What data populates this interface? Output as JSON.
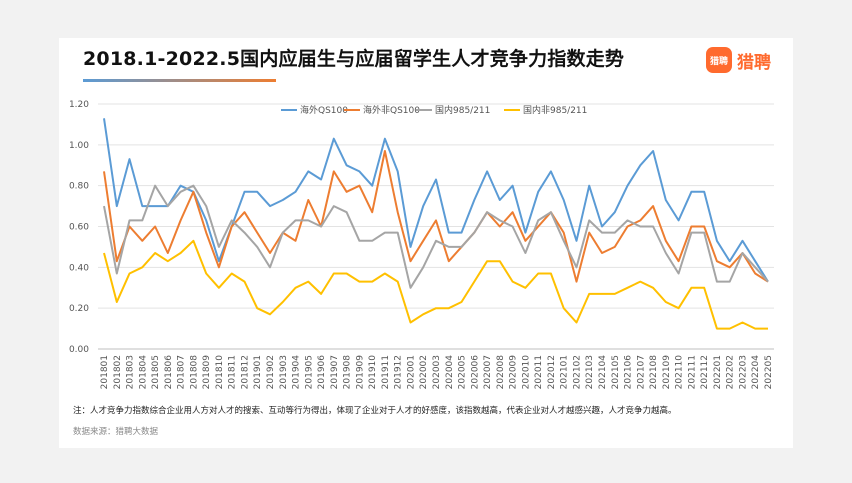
{
  "header": {
    "title": "2018.1-2022.5国内应届生与应届留学生人才竞争力指数走势",
    "brand_icon_text": "猎聘",
    "brand_name": "猎聘"
  },
  "note": "注：人才竞争力指数综合企业用人方对人才的搜索、互动等行为得出，体现了企业对于人才的好感度，该指数越高，代表企业对人才越感兴趣，人才竞争力越高。",
  "source": "数据来源：猎聘大数据",
  "chart_data": {
    "type": "line",
    "title": "2018.1-2022.5国内应届生与应届留学生人才竞争力指数走势",
    "xlabel": "",
    "ylabel": "",
    "ylim": [
      0,
      1.2
    ],
    "yticks": [
      "0.00",
      "0.20",
      "0.40",
      "0.60",
      "0.80",
      "1.00",
      "1.20"
    ],
    "grid": true,
    "legend_position": "top",
    "categories": [
      "201801",
      "201802",
      "201803",
      "201804",
      "201805",
      "201806",
      "201807",
      "201808",
      "201809",
      "201810",
      "201811",
      "201812",
      "201901",
      "201902",
      "201903",
      "201904",
      "201905",
      "201906",
      "201907",
      "201908",
      "201909",
      "201910",
      "201911",
      "201912",
      "202001",
      "202002",
      "202003",
      "202004",
      "202005",
      "202006",
      "202007",
      "202008",
      "202009",
      "202010",
      "202011",
      "202012",
      "202101",
      "202102",
      "202103",
      "202104",
      "202105",
      "202106",
      "202107",
      "202108",
      "202109",
      "202110",
      "202111",
      "202112",
      "202201",
      "202202",
      "202203",
      "202204",
      "202205"
    ],
    "series": [
      {
        "name": "海外QS100",
        "color": "#5b9bd5",
        "values": [
          1.13,
          0.7,
          0.93,
          0.7,
          0.7,
          0.7,
          0.8,
          0.77,
          0.63,
          0.43,
          0.6,
          0.77,
          0.77,
          0.7,
          0.73,
          0.77,
          0.87,
          0.83,
          1.03,
          0.9,
          0.87,
          0.8,
          1.03,
          0.87,
          0.5,
          0.7,
          0.83,
          0.57,
          0.57,
          0.73,
          0.87,
          0.73,
          0.8,
          0.57,
          0.77,
          0.87,
          0.73,
          0.53,
          0.8,
          0.6,
          0.67,
          0.8,
          0.9,
          0.97,
          0.73,
          0.63,
          0.77,
          0.77,
          0.53,
          0.43,
          0.53,
          0.43,
          0.33
        ]
      },
      {
        "name": "海外非QS100",
        "color": "#ed7d31",
        "values": [
          0.87,
          0.43,
          0.6,
          0.53,
          0.6,
          0.47,
          0.63,
          0.77,
          0.57,
          0.4,
          0.6,
          0.67,
          0.57,
          0.47,
          0.57,
          0.53,
          0.73,
          0.6,
          0.87,
          0.77,
          0.8,
          0.67,
          0.97,
          0.67,
          0.43,
          0.53,
          0.63,
          0.43,
          0.5,
          0.57,
          0.67,
          0.6,
          0.67,
          0.53,
          0.6,
          0.67,
          0.57,
          0.33,
          0.57,
          0.47,
          0.5,
          0.6,
          0.63,
          0.7,
          0.53,
          0.43,
          0.6,
          0.6,
          0.43,
          0.4,
          0.47,
          0.37,
          0.33
        ]
      },
      {
        "name": "国内985/211",
        "color": "#a5a5a5",
        "values": [
          0.7,
          0.37,
          0.63,
          0.63,
          0.8,
          0.7,
          0.77,
          0.8,
          0.7,
          0.5,
          0.63,
          0.57,
          0.5,
          0.4,
          0.57,
          0.63,
          0.63,
          0.6,
          0.7,
          0.67,
          0.53,
          0.53,
          0.57,
          0.57,
          0.3,
          0.4,
          0.53,
          0.5,
          0.5,
          0.57,
          0.67,
          0.63,
          0.6,
          0.47,
          0.63,
          0.67,
          0.53,
          0.4,
          0.63,
          0.57,
          0.57,
          0.63,
          0.6,
          0.6,
          0.47,
          0.37,
          0.57,
          0.57,
          0.33,
          0.33,
          0.47,
          0.4,
          0.33
        ]
      },
      {
        "name": "国内非985/211",
        "color": "#ffc000",
        "values": [
          0.47,
          0.23,
          0.37,
          0.4,
          0.47,
          0.43,
          0.47,
          0.53,
          0.37,
          0.3,
          0.37,
          0.33,
          0.2,
          0.17,
          0.23,
          0.3,
          0.33,
          0.27,
          0.37,
          0.37,
          0.33,
          0.33,
          0.37,
          0.33,
          0.13,
          0.17,
          0.2,
          0.2,
          0.23,
          0.33,
          0.43,
          0.43,
          0.33,
          0.3,
          0.37,
          0.37,
          0.2,
          0.13,
          0.27,
          0.27,
          0.27,
          0.3,
          0.33,
          0.3,
          0.23,
          0.2,
          0.3,
          0.3,
          0.1,
          0.1,
          0.13,
          0.1,
          0.1
        ]
      }
    ]
  }
}
